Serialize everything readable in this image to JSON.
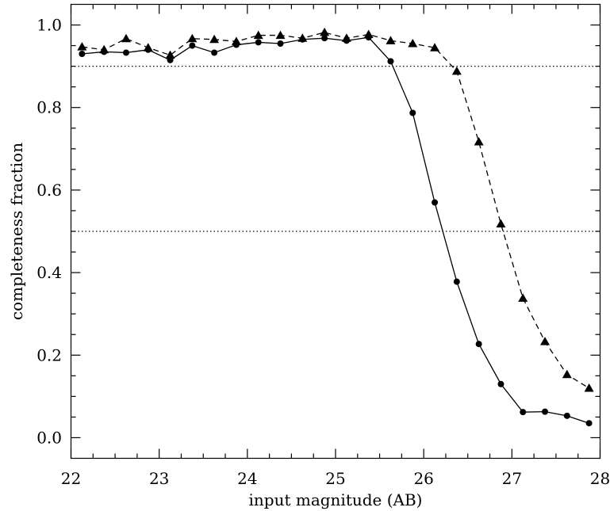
{
  "chart_data": {
    "type": "line",
    "xlabel": "input magnitude (AB)",
    "ylabel": "completeness fraction",
    "xlim": [
      22,
      28
    ],
    "ylim": [
      -0.05,
      1.05
    ],
    "xticks": [
      "22",
      "23",
      "24",
      "25",
      "26",
      "27",
      "28"
    ],
    "yticks": [
      "0.0",
      "0.2",
      "0.4",
      "0.6",
      "0.8",
      "1.0"
    ],
    "x_minor_step": 0.25,
    "y_minor_step": 0.05,
    "reference_lines": [
      0.9,
      0.5
    ],
    "reference_line_style": "dotted",
    "grid": false,
    "legend": "none",
    "series": [
      {
        "marker": "circle",
        "line_style": "solid",
        "color": "#000000",
        "x": [
          22.125,
          22.375,
          22.625,
          22.875,
          23.125,
          23.375,
          23.625,
          23.875,
          24.125,
          24.375,
          24.625,
          24.875,
          25.125,
          25.375,
          25.625,
          25.875,
          26.125,
          26.375,
          26.625,
          26.875,
          27.125,
          27.375,
          27.625,
          27.875
        ],
        "values": [
          0.93,
          0.935,
          0.933,
          0.94,
          0.915,
          0.95,
          0.933,
          0.952,
          0.958,
          0.955,
          0.965,
          0.968,
          0.962,
          0.97,
          0.912,
          0.787,
          0.57,
          0.378,
          0.227,
          0.13,
          0.062,
          0.063,
          0.053,
          0.035
        ]
      },
      {
        "marker": "triangle",
        "line_style": "dashed",
        "color": "#000000",
        "x": [
          22.125,
          22.375,
          22.625,
          22.875,
          23.125,
          23.375,
          23.625,
          23.875,
          24.125,
          24.375,
          24.625,
          24.875,
          25.125,
          25.375,
          25.625,
          25.875,
          26.125,
          26.375,
          26.625,
          26.875,
          27.125,
          27.375,
          27.625,
          27.875
        ],
        "values": [
          0.947,
          0.94,
          0.967,
          0.945,
          0.927,
          0.967,
          0.965,
          0.96,
          0.975,
          0.975,
          0.968,
          0.982,
          0.968,
          0.977,
          0.962,
          0.955,
          0.945,
          0.888,
          0.717,
          0.518,
          0.338,
          0.233,
          0.153,
          0.12
        ]
      }
    ]
  }
}
